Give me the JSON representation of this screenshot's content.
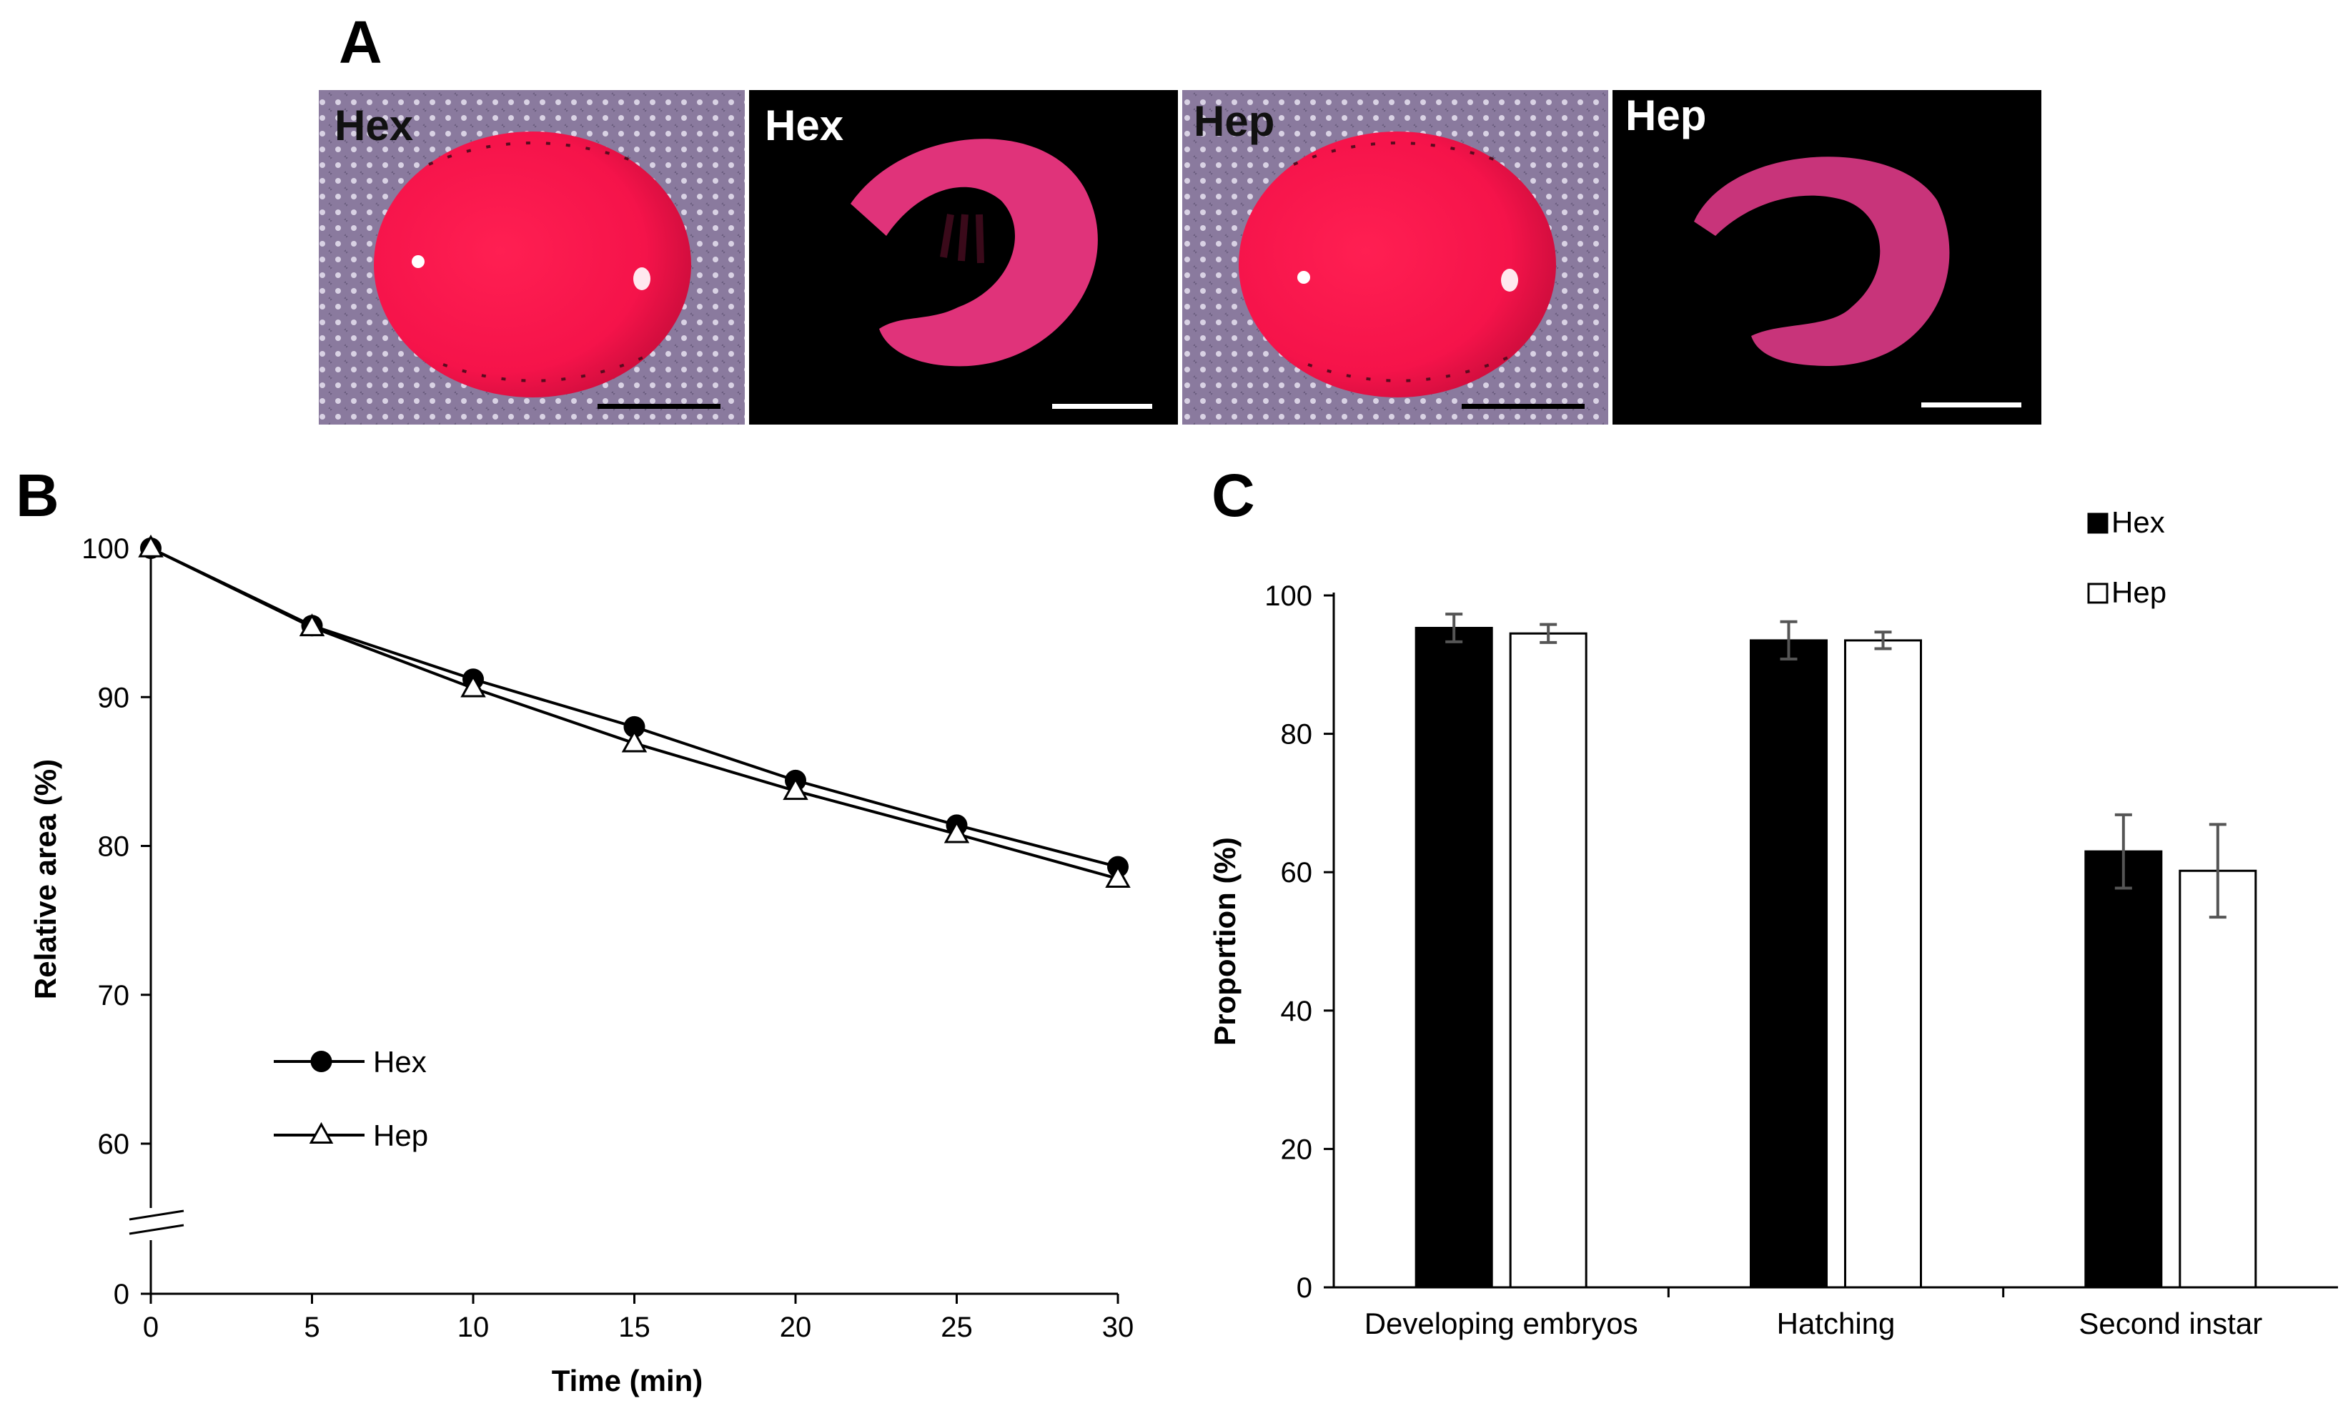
{
  "figure": {
    "panel_a": {
      "letter": "A",
      "photos": [
        {
          "label": "Hex",
          "subject": "egg",
          "label_color": "#111111",
          "bar_color": "#000000"
        },
        {
          "label": "Hex",
          "subject": "embryo",
          "label_color": "#ffffff",
          "bar_color": "#ffffff"
        },
        {
          "label": "Hep",
          "subject": "egg",
          "label_color": "#111111",
          "bar_color": "#000000"
        },
        {
          "label": "Hep",
          "subject": "embryo",
          "label_color": "#ffffff",
          "bar_color": "#ffffff"
        }
      ]
    },
    "panel_b": {
      "letter": "B"
    },
    "panel_c": {
      "letter": "C"
    }
  },
  "chart_data": [
    {
      "panel": "B",
      "type": "line",
      "xlabel": "Time (min)",
      "ylabel": "Relative area (%)",
      "x": [
        0,
        5,
        10,
        15,
        20,
        25,
        30
      ],
      "xlim": [
        0,
        30
      ],
      "ylim": [
        0,
        100
      ],
      "y_ticks": [
        0,
        60,
        70,
        80,
        90,
        100
      ],
      "axis_break": "between 0 and 60",
      "series": [
        {
          "name": "Hex",
          "marker": "filled-circle",
          "values": [
            100,
            94.8,
            91.2,
            88.0,
            84.4,
            81.4,
            78.6
          ]
        },
        {
          "name": "Hep",
          "marker": "open-triangle",
          "values": [
            100,
            94.7,
            90.6,
            86.9,
            83.7,
            80.8,
            77.8
          ]
        }
      ],
      "legend_position": "lower-left",
      "grid": false
    },
    {
      "panel": "C",
      "type": "bar",
      "ylabel": "Proportion (%)",
      "categories": [
        "Developing embryos",
        "Hatching",
        "Second instar"
      ],
      "ylim": [
        0,
        100
      ],
      "y_ticks": [
        0,
        20,
        40,
        60,
        80,
        100
      ],
      "series": [
        {
          "name": "Hex",
          "fill": "#000000",
          "values": [
            95.3,
            93.5,
            63.0
          ],
          "errors": [
            2.0,
            2.7,
            5.3
          ]
        },
        {
          "name": "Hep",
          "fill": "#ffffff",
          "values": [
            94.5,
            93.5,
            60.2
          ],
          "errors": [
            1.3,
            1.2,
            6.7
          ]
        }
      ],
      "legend_position": "top-right",
      "grid": false
    }
  ]
}
